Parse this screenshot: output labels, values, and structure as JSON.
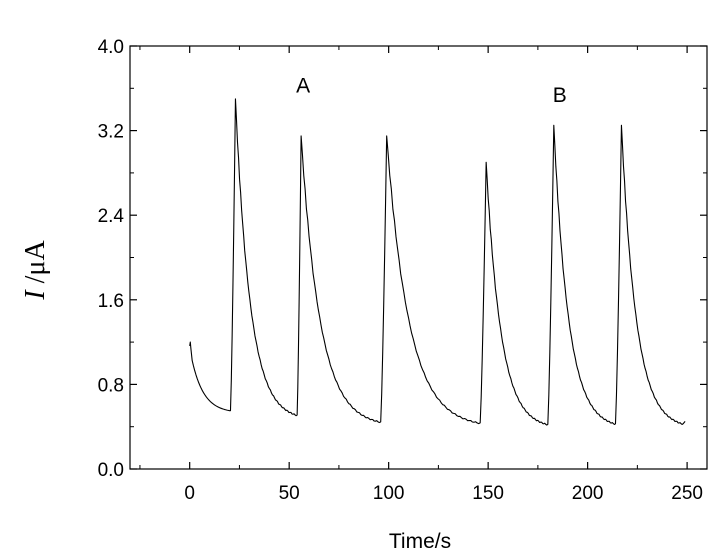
{
  "chart_data": {
    "type": "line",
    "title": "",
    "xlabel": "Time/s",
    "ylabel_italic": "I",
    "ylabel_rest": " /μA",
    "xlim": [
      -30,
      260
    ],
    "ylim": [
      0.0,
      4.0
    ],
    "x_ticks": [
      0,
      50,
      100,
      150,
      200,
      250
    ],
    "x_tick_labels": [
      "0",
      "50",
      "100",
      "150",
      "200",
      "250"
    ],
    "y_ticks": [
      0.0,
      0.8,
      1.6,
      2.4,
      3.2,
      4.0
    ],
    "y_tick_labels": [
      "0.0",
      "0.8",
      "1.6",
      "2.4",
      "3.2",
      "4.0"
    ],
    "grid": false,
    "annotations": [
      {
        "text": "A",
        "x": 57,
        "y": 3.56
      },
      {
        "text": "B",
        "x": 186,
        "y": 3.47
      }
    ],
    "series": [
      {
        "name": "current",
        "initial": {
          "x0": 0,
          "peak": 1.2,
          "tail_end_x": 20,
          "tail_end": 0.53
        },
        "pulses": [
          {
            "start": 20.5,
            "peak_t": 23,
            "peak": 3.5,
            "end": 54,
            "baseline": 0.46
          },
          {
            "start": 54,
            "peak_t": 56,
            "peak": 3.15,
            "end": 96,
            "baseline": 0.4
          },
          {
            "start": 96,
            "peak_t": 99,
            "peak": 3.15,
            "end": 146,
            "baseline": 0.39
          },
          {
            "start": 146,
            "peak_t": 149,
            "peak": 2.9,
            "end": 180,
            "baseline": 0.38
          },
          {
            "start": 180,
            "peak_t": 183,
            "peak": 3.25,
            "end": 214,
            "baseline": 0.38
          },
          {
            "start": 214,
            "peak_t": 217,
            "peak": 3.25,
            "end": 248,
            "baseline": 0.38
          }
        ],
        "final": {
          "x": 249,
          "value": 0.45
        }
      }
    ]
  }
}
